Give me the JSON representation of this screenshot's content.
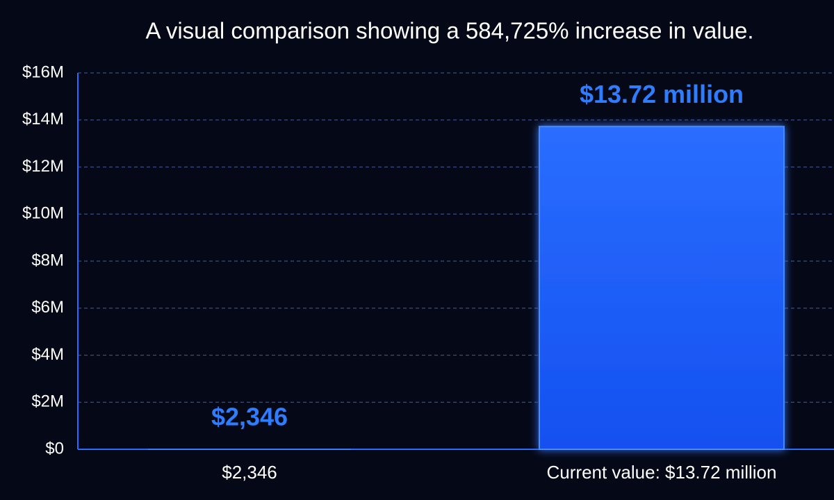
{
  "chart_data": {
    "type": "bar",
    "title": "A visual comparison showing a 584,725% increase in value.",
    "categories": [
      "$2,346",
      "Current value: $13.72 million"
    ],
    "values": [
      2346,
      13720000
    ],
    "value_labels": [
      "$2,346",
      "$13.72 million"
    ],
    "color": "#1a5cff",
    "ylim": [
      0,
      16000000
    ],
    "yticks": [
      {
        "value": 0,
        "label": "$0"
      },
      {
        "value": 2000000,
        "label": "$2M"
      },
      {
        "value": 4000000,
        "label": "$4M"
      },
      {
        "value": 6000000,
        "label": "$6M"
      },
      {
        "value": 8000000,
        "label": "$8M"
      },
      {
        "value": 10000000,
        "label": "$10M"
      },
      {
        "value": 12000000,
        "label": "$12M"
      },
      {
        "value": 14000000,
        "label": "$14M"
      },
      {
        "value": 16000000,
        "label": "$16M"
      }
    ],
    "grid": true
  }
}
